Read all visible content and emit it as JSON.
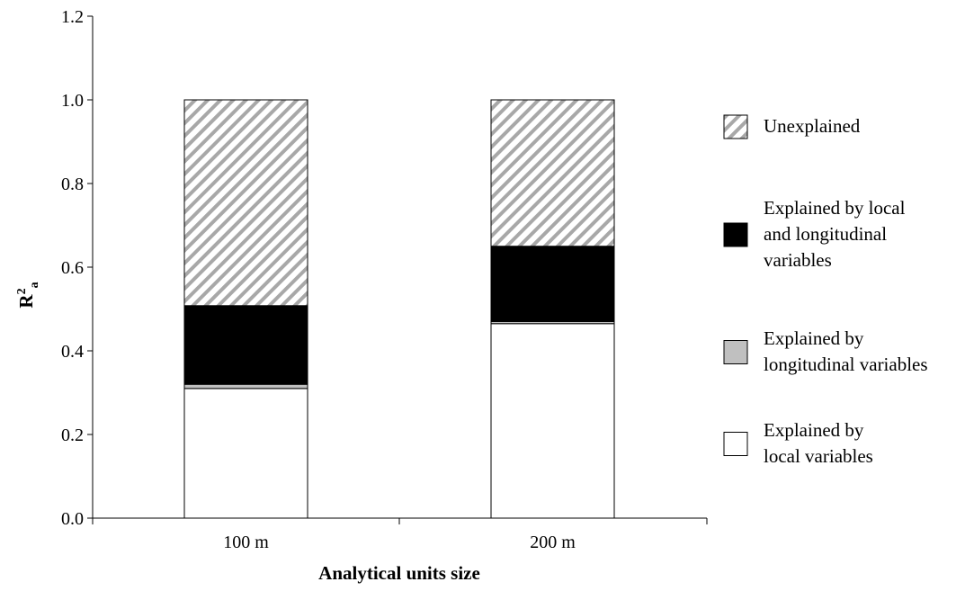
{
  "chart_data": {
    "type": "bar",
    "stacked": true,
    "categories": [
      "100 m",
      "200 m"
    ],
    "series": [
      {
        "name": "Explained by local variables",
        "values": [
          0.31,
          0.465
        ],
        "fill": "#ffffff"
      },
      {
        "name": "Explained by longitudinal variables",
        "values": [
          0.01,
          0.005
        ],
        "fill": "#c0c0c0"
      },
      {
        "name": "Explained by local and longitudinal variables",
        "values": [
          0.188,
          0.18
        ],
        "fill": "#000000"
      },
      {
        "name": "Unexplained",
        "values": [
          0.492,
          0.35
        ],
        "fill": "hatch"
      }
    ],
    "xlabel": "Analytical units size",
    "ylabel": "R",
    "ylabel_sup": "2",
    "ylabel_sub": "a",
    "ylim": [
      0,
      1.2
    ],
    "yticks": [
      "0.0",
      "0.2",
      "0.4",
      "0.6",
      "0.8",
      "1.0",
      "1.2"
    ],
    "ytick_values": [
      0,
      0.2,
      0.4,
      0.6,
      0.8,
      1.0,
      1.2
    ],
    "grid": false,
    "legend_position": "right",
    "legend": [
      {
        "lines": [
          "Unexplained"
        ],
        "fill": "hatch"
      },
      {
        "lines": [
          "Explained by local",
          "and longitudinal",
          "variables"
        ],
        "fill": "#000000"
      },
      {
        "lines": [
          "Explained by",
          "longitudinal variables"
        ],
        "fill": "#c0c0c0"
      },
      {
        "lines": [
          "Explained by",
          "local variables"
        ],
        "fill": "#ffffff"
      }
    ]
  }
}
